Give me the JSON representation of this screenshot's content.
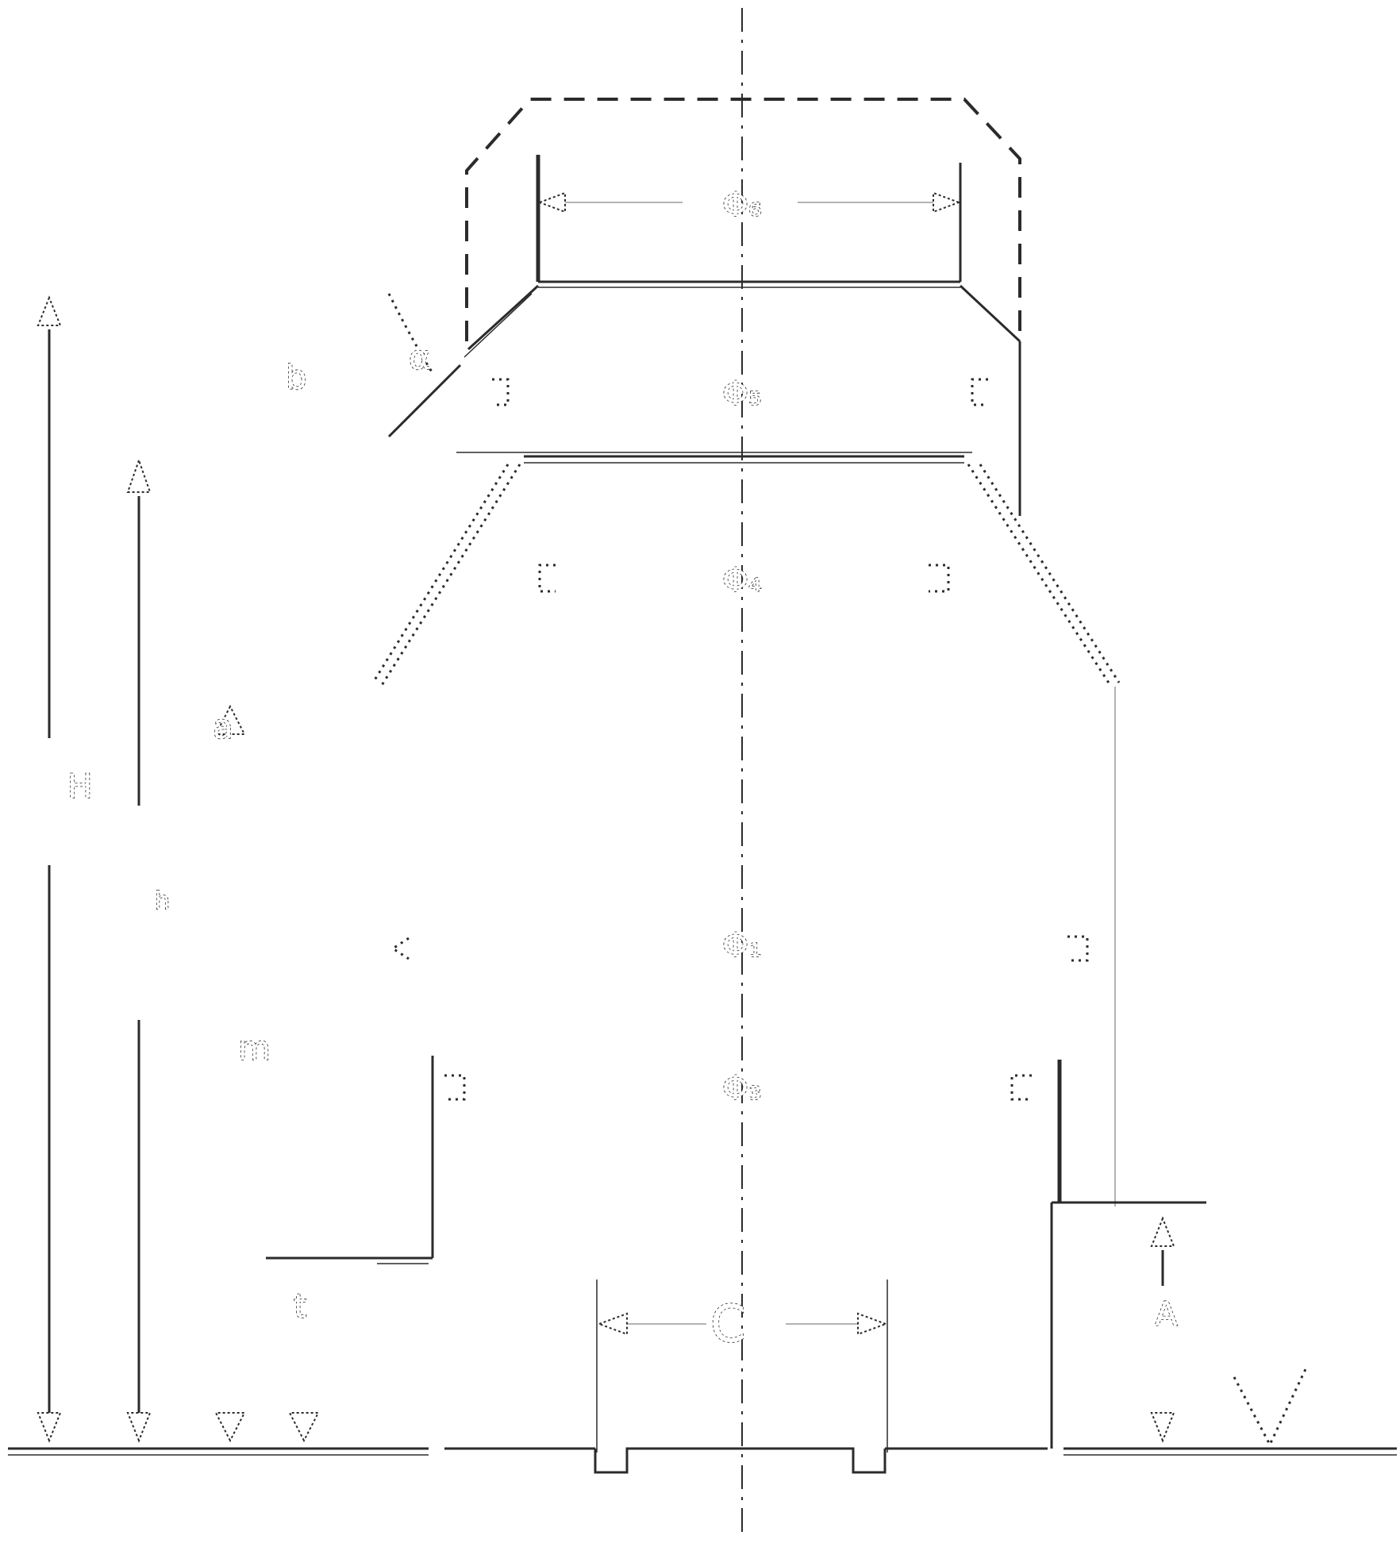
{
  "labels": {
    "top_width": "Φ₆",
    "section_5": "Φ₅",
    "section_4": "Φ₄",
    "section_1": "Φ₁",
    "section_3": "Φ₃",
    "opening": "C",
    "height_outer": "H",
    "height_inner": "h",
    "dim_a": "a",
    "dim_b": "b",
    "dim_m": "m",
    "dim_t": "t",
    "dim_A": "A",
    "angle": "α"
  }
}
